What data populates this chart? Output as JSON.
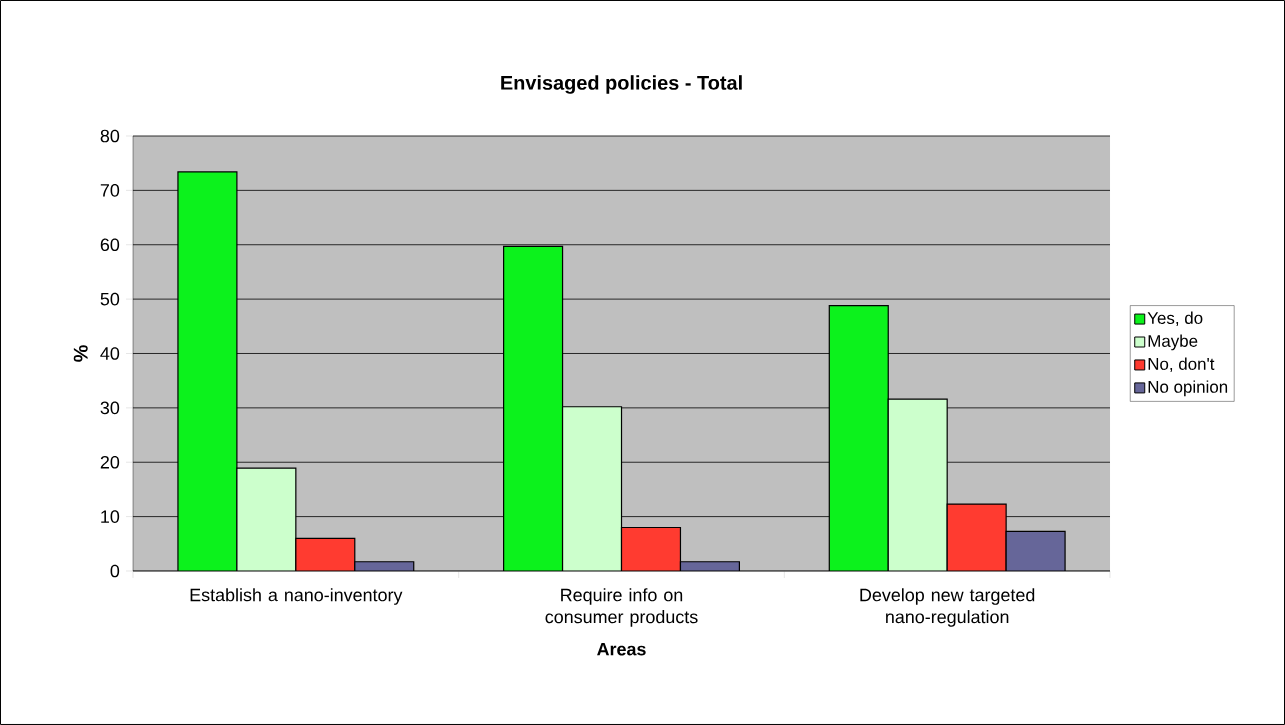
{
  "chart_data": {
    "type": "bar",
    "title": "Envisaged policies - Total",
    "xlabel": "Areas",
    "ylabel": "%",
    "categories": [
      "Establish a nano-inventory",
      "Require info on consumer products",
      "Develop new targeted nano-regulation"
    ],
    "series": [
      {
        "name": "Yes, do",
        "color": "#0cf21c",
        "values": [
          73.4,
          59.7,
          48.8
        ]
      },
      {
        "name": "Maybe",
        "color": "#ccffcc",
        "values": [
          18.9,
          30.2,
          31.6
        ]
      },
      {
        "name": "No, don't",
        "color": "#ff3b30",
        "values": [
          6.0,
          8.0,
          12.3
        ]
      },
      {
        "name": "No opinion",
        "color": "#666699",
        "values": [
          1.7,
          1.7,
          7.3
        ]
      }
    ],
    "ylim": [
      0,
      80
    ],
    "yticks": [
      0,
      10,
      20,
      30,
      40,
      50,
      60,
      70,
      80
    ],
    "grid": "y",
    "legend": "right"
  }
}
